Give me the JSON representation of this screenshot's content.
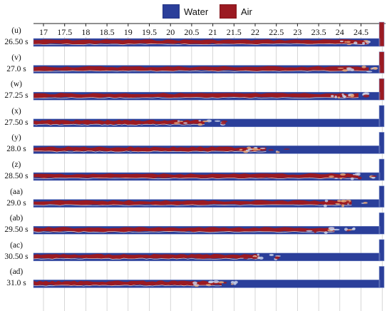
{
  "legend": [
    {
      "label": "Water",
      "color": "#2b3f9a"
    },
    {
      "label": "Air",
      "color": "#9b1a22"
    }
  ],
  "x_axis": {
    "ticks": [
      "17",
      "17.5",
      "18",
      "18.5",
      "19",
      "19.5",
      "20",
      "20.5",
      "21",
      "21.5",
      "22",
      "22.5",
      "23",
      "23.5",
      "24",
      "24.5",
      "2"
    ]
  },
  "panels": [
    {
      "label": "(u)",
      "time": "26.50 s",
      "air_end": 0.98
    },
    {
      "label": "(v)",
      "time": "27.0 s",
      "air_end": 0.98
    },
    {
      "label": "(w)",
      "time": "27.25 s",
      "air_end": 0.95
    },
    {
      "label": "(x)",
      "time": "27.50 s",
      "air_end": 0.5
    },
    {
      "label": "(y)",
      "time": "28.0 s",
      "air_end": 0.68
    },
    {
      "label": "(z)",
      "time": "28.50 s",
      "air_end": 0.95
    },
    {
      "label": "(aa)",
      "time": "29.0 s",
      "air_end": 0.93
    },
    {
      "label": "(ab)",
      "time": "29.50 s",
      "air_end": 0.88
    },
    {
      "label": "(ac)",
      "time": "30.50 s",
      "air_end": 0.66
    },
    {
      "label": "(ad)",
      "time": "31.0 s",
      "air_end": 0.55
    }
  ]
}
